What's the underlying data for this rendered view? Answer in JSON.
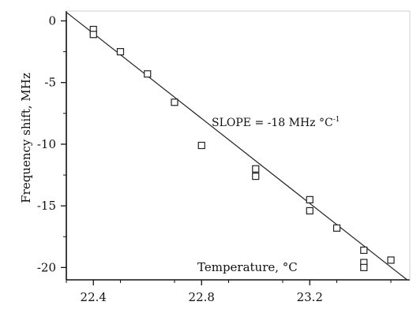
{
  "chart_data": {
    "type": "scatter",
    "title": "",
    "xlabel": "Temperature, °C",
    "ylabel": "Frequency shift, MHz",
    "xlim": [
      22.3,
      23.57
    ],
    "ylim": [
      -21.0,
      0.8
    ],
    "xticks": [
      22.4,
      22.8,
      23.2
    ],
    "xtick_labels": [
      "22.4",
      "22.8",
      "23.2"
    ],
    "yticks": [
      0,
      -5,
      -10,
      -15,
      -20
    ],
    "ytick_labels": [
      "0",
      "-5",
      "-10",
      "-15",
      "-20"
    ],
    "points": [
      {
        "x": 22.4,
        "y": -0.7
      },
      {
        "x": 22.4,
        "y": -1.1
      },
      {
        "x": 22.5,
        "y": -2.5
      },
      {
        "x": 22.6,
        "y": -4.3
      },
      {
        "x": 22.7,
        "y": -6.6
      },
      {
        "x": 22.8,
        "y": -10.1
      },
      {
        "x": 23.0,
        "y": -12.0
      },
      {
        "x": 23.0,
        "y": -12.6
      },
      {
        "x": 23.2,
        "y": -14.5
      },
      {
        "x": 23.2,
        "y": -15.4
      },
      {
        "x": 23.3,
        "y": -16.8
      },
      {
        "x": 23.4,
        "y": -18.6
      },
      {
        "x": 23.4,
        "y": -19.6
      },
      {
        "x": 23.4,
        "y": -20.0
      },
      {
        "x": 23.5,
        "y": -19.4
      }
    ],
    "fit_line": {
      "x": [
        22.3,
        23.56
      ],
      "y": [
        0.7,
        -21.0
      ]
    },
    "annotation": {
      "text": "SLOPE = -18 MHz °C",
      "superscript": "-1"
    },
    "grid": false,
    "legend": false
  }
}
